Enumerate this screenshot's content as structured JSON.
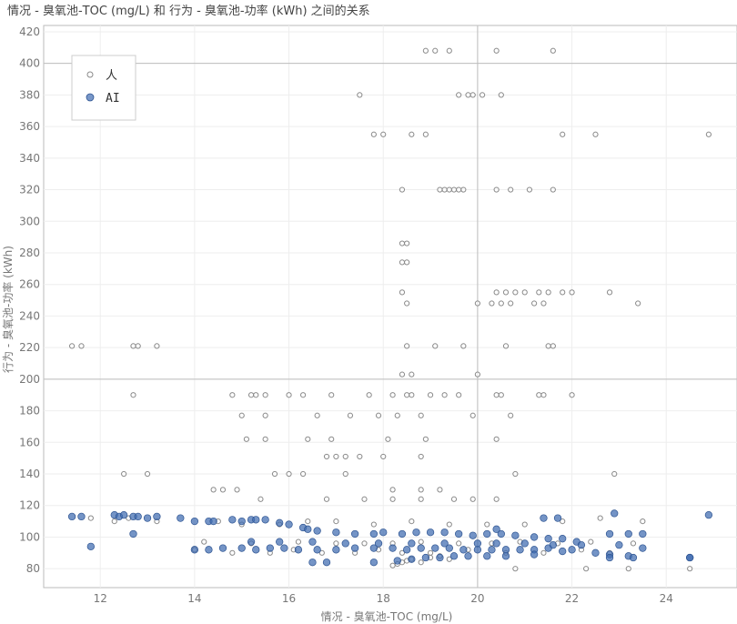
{
  "chart_data": {
    "type": "scatter",
    "title": "情况 - 臭氧池-TOC (mg/L) 和 行为 - 臭氧池-功率 (kWh) 之间的关系",
    "xlabel": "情况 - 臭氧池-TOC (mg/L)",
    "ylabel": "行为 - 臭氧池-功率 (kWh)",
    "xlim": [
      10.8,
      25.5
    ],
    "ylim": [
      68,
      424
    ],
    "xticks": [
      12,
      14,
      16,
      18,
      20,
      22,
      24
    ],
    "yticks": [
      80,
      100,
      120,
      140,
      160,
      180,
      200,
      220,
      240,
      260,
      280,
      300,
      320,
      340,
      360,
      380,
      400,
      420
    ],
    "reference_lines": {
      "x": [
        20
      ],
      "y": [
        200,
        400
      ]
    },
    "grid": true,
    "legend": {
      "position": "top-left"
    },
    "colors": {
      "human": "#8a8a8a",
      "ai": "#3e6bb0"
    },
    "series": [
      {
        "name": "人",
        "style": "hollow",
        "x": [
          11.4,
          11.6,
          12.7,
          12.8,
          13.2,
          12.7,
          18.9,
          19.1,
          19.4,
          20.4,
          21.6,
          17.5,
          19.6,
          19.8,
          19.9,
          20.1,
          20.5,
          17.8,
          18.0,
          18.6,
          18.9,
          21.8,
          22.5,
          24.9,
          18.4,
          19.2,
          19.3,
          19.4,
          19.5,
          19.6,
          19.7,
          20.4,
          20.7,
          21.1,
          21.6,
          18.4,
          18.5,
          18.4,
          18.5,
          18.4,
          18.5,
          20.4,
          20.6,
          20.8,
          21.0,
          21.3,
          21.5,
          21.8,
          22.0,
          22.8,
          20.0,
          20.3,
          20.5,
          20.7,
          21.2,
          21.4,
          23.4,
          18.5,
          19.1,
          19.7,
          20.6,
          21.5,
          21.6,
          18.4,
          18.6,
          20.0,
          14.8,
          15.2,
          15.3,
          15.5,
          16.0,
          16.3,
          16.9,
          17.7,
          18.2,
          18.5,
          18.6,
          19.0,
          19.3,
          19.6,
          20.4,
          20.5,
          21.3,
          21.4,
          22.0,
          15.0,
          15.5,
          16.6,
          17.3,
          17.9,
          18.3,
          18.8,
          19.9,
          20.7,
          15.1,
          15.5,
          16.4,
          16.9,
          18.1,
          18.9,
          20.4,
          16.8,
          17.0,
          17.2,
          17.5,
          18.0,
          18.8,
          14.4,
          14.6,
          14.9,
          15.7,
          16.0,
          16.3,
          17.2,
          18.2,
          18.8,
          19.2,
          20.8,
          22.9,
          12.5,
          13.0,
          15.4,
          16.8,
          17.6,
          18.2,
          18.8,
          19.5,
          19.9,
          20.4,
          11.8,
          12.3,
          12.6,
          13.2,
          14.5,
          15.0,
          15.8,
          16.4,
          17.0,
          17.8,
          18.6,
          19.4,
          20.2,
          21.0,
          21.8,
          22.6,
          23.5,
          14.0,
          14.8,
          15.6,
          16.1,
          16.7,
          17.4,
          17.9,
          18.4,
          19.0,
          19.8,
          20.6,
          21.4,
          22.2,
          22.8,
          14.2,
          15.2,
          16.2,
          17.0,
          17.6,
          18.2,
          18.8,
          19.6,
          20.3,
          20.9,
          21.7,
          22.4,
          23.3,
          18.2,
          18.3,
          18.4,
          18.5,
          18.6,
          18.8,
          19.0,
          19.2,
          19.4,
          20.8,
          22.3,
          23.2,
          24.5
        ],
        "y": [
          221,
          221,
          221,
          221,
          221,
          190,
          408,
          408,
          408,
          408,
          408,
          380,
          380,
          380,
          380,
          380,
          380,
          355,
          355,
          355,
          355,
          355,
          355,
          355,
          320,
          320,
          320,
          320,
          320,
          320,
          320,
          320,
          320,
          320,
          320,
          286,
          286,
          274,
          274,
          255,
          248,
          255,
          255,
          255,
          255,
          255,
          255,
          255,
          255,
          255,
          248,
          248,
          248,
          248,
          248,
          248,
          248,
          221,
          221,
          221,
          221,
          221,
          221,
          203,
          203,
          203,
          190,
          190,
          190,
          190,
          190,
          190,
          190,
          190,
          190,
          190,
          190,
          190,
          190,
          190,
          190,
          190,
          190,
          190,
          190,
          177,
          177,
          177,
          177,
          177,
          177,
          177,
          177,
          177,
          162,
          162,
          162,
          162,
          162,
          162,
          162,
          151,
          151,
          151,
          151,
          151,
          151,
          130,
          130,
          130,
          140,
          140,
          140,
          140,
          130,
          130,
          130,
          140,
          140,
          140,
          140,
          124,
          124,
          124,
          124,
          124,
          124,
          124,
          124,
          112,
          110,
          112,
          110,
          110,
          108,
          108,
          110,
          110,
          108,
          110,
          108,
          108,
          108,
          110,
          112,
          110,
          92,
          90,
          90,
          92,
          90,
          90,
          92,
          90,
          90,
          92,
          90,
          90,
          92,
          90,
          97,
          96,
          97,
          96,
          96,
          96,
          97,
          96,
          96,
          97,
          96,
          97,
          96,
          82,
          83,
          84,
          85,
          86,
          84,
          87,
          88,
          86,
          80,
          80,
          80,
          80
        ]
      },
      {
        "name": "AI",
        "style": "filled",
        "x": [
          11.4,
          11.6,
          11.8,
          12.3,
          12.4,
          12.5,
          12.7,
          12.7,
          12.8,
          13.0,
          13.2,
          13.7,
          14.0,
          14.3,
          14.4,
          14.8,
          15.0,
          15.2,
          15.3,
          15.5,
          15.8,
          16.0,
          16.3,
          16.4,
          16.6,
          17.0,
          17.4,
          17.8,
          18.0,
          18.4,
          18.7,
          19.0,
          19.3,
          19.6,
          19.9,
          20.2,
          20.5,
          20.8,
          21.2,
          21.5,
          21.8,
          22.1,
          22.8,
          23.2,
          23.5,
          24.9,
          14.0,
          14.3,
          14.6,
          15.0,
          15.3,
          15.6,
          15.9,
          16.2,
          16.6,
          17.0,
          17.4,
          17.8,
          18.2,
          18.5,
          18.8,
          19.1,
          19.4,
          19.7,
          20.0,
          20.3,
          20.6,
          20.9,
          21.2,
          21.5,
          21.8,
          22.0,
          22.5,
          22.8,
          23.2,
          15.2,
          15.8,
          16.5,
          17.2,
          17.9,
          18.6,
          19.3,
          20.0,
          20.4,
          21.0,
          21.6,
          22.2,
          23.0,
          23.5,
          16.5,
          16.8,
          17.8,
          18.3,
          18.6,
          18.9,
          19.2,
          19.5,
          19.8,
          20.2,
          20.6,
          21.2,
          22.8,
          23.3,
          24.5,
          24.5,
          22.9,
          20.4,
          21.4,
          21.7
        ],
        "y": [
          113,
          113,
          94,
          114,
          113,
          114,
          102,
          113,
          113,
          112,
          113,
          112,
          110,
          110,
          110,
          111,
          110,
          111,
          111,
          111,
          109,
          108,
          106,
          105,
          104,
          103,
          102,
          102,
          103,
          102,
          103,
          103,
          103,
          102,
          101,
          102,
          102,
          101,
          100,
          99,
          99,
          97,
          102,
          102,
          102,
          114,
          92,
          92,
          93,
          93,
          92,
          93,
          93,
          92,
          92,
          92,
          93,
          93,
          93,
          92,
          93,
          93,
          93,
          92,
          92,
          92,
          92,
          92,
          92,
          93,
          91,
          92,
          90,
          89,
          88,
          97,
          97,
          97,
          96,
          96,
          96,
          96,
          96,
          96,
          96,
          95,
          95,
          95,
          93,
          84,
          84,
          84,
          85,
          86,
          87,
          87,
          88,
          88,
          88,
          88,
          89,
          87,
          87,
          87,
          87,
          115,
          105,
          112,
          112
        ]
      }
    ]
  }
}
